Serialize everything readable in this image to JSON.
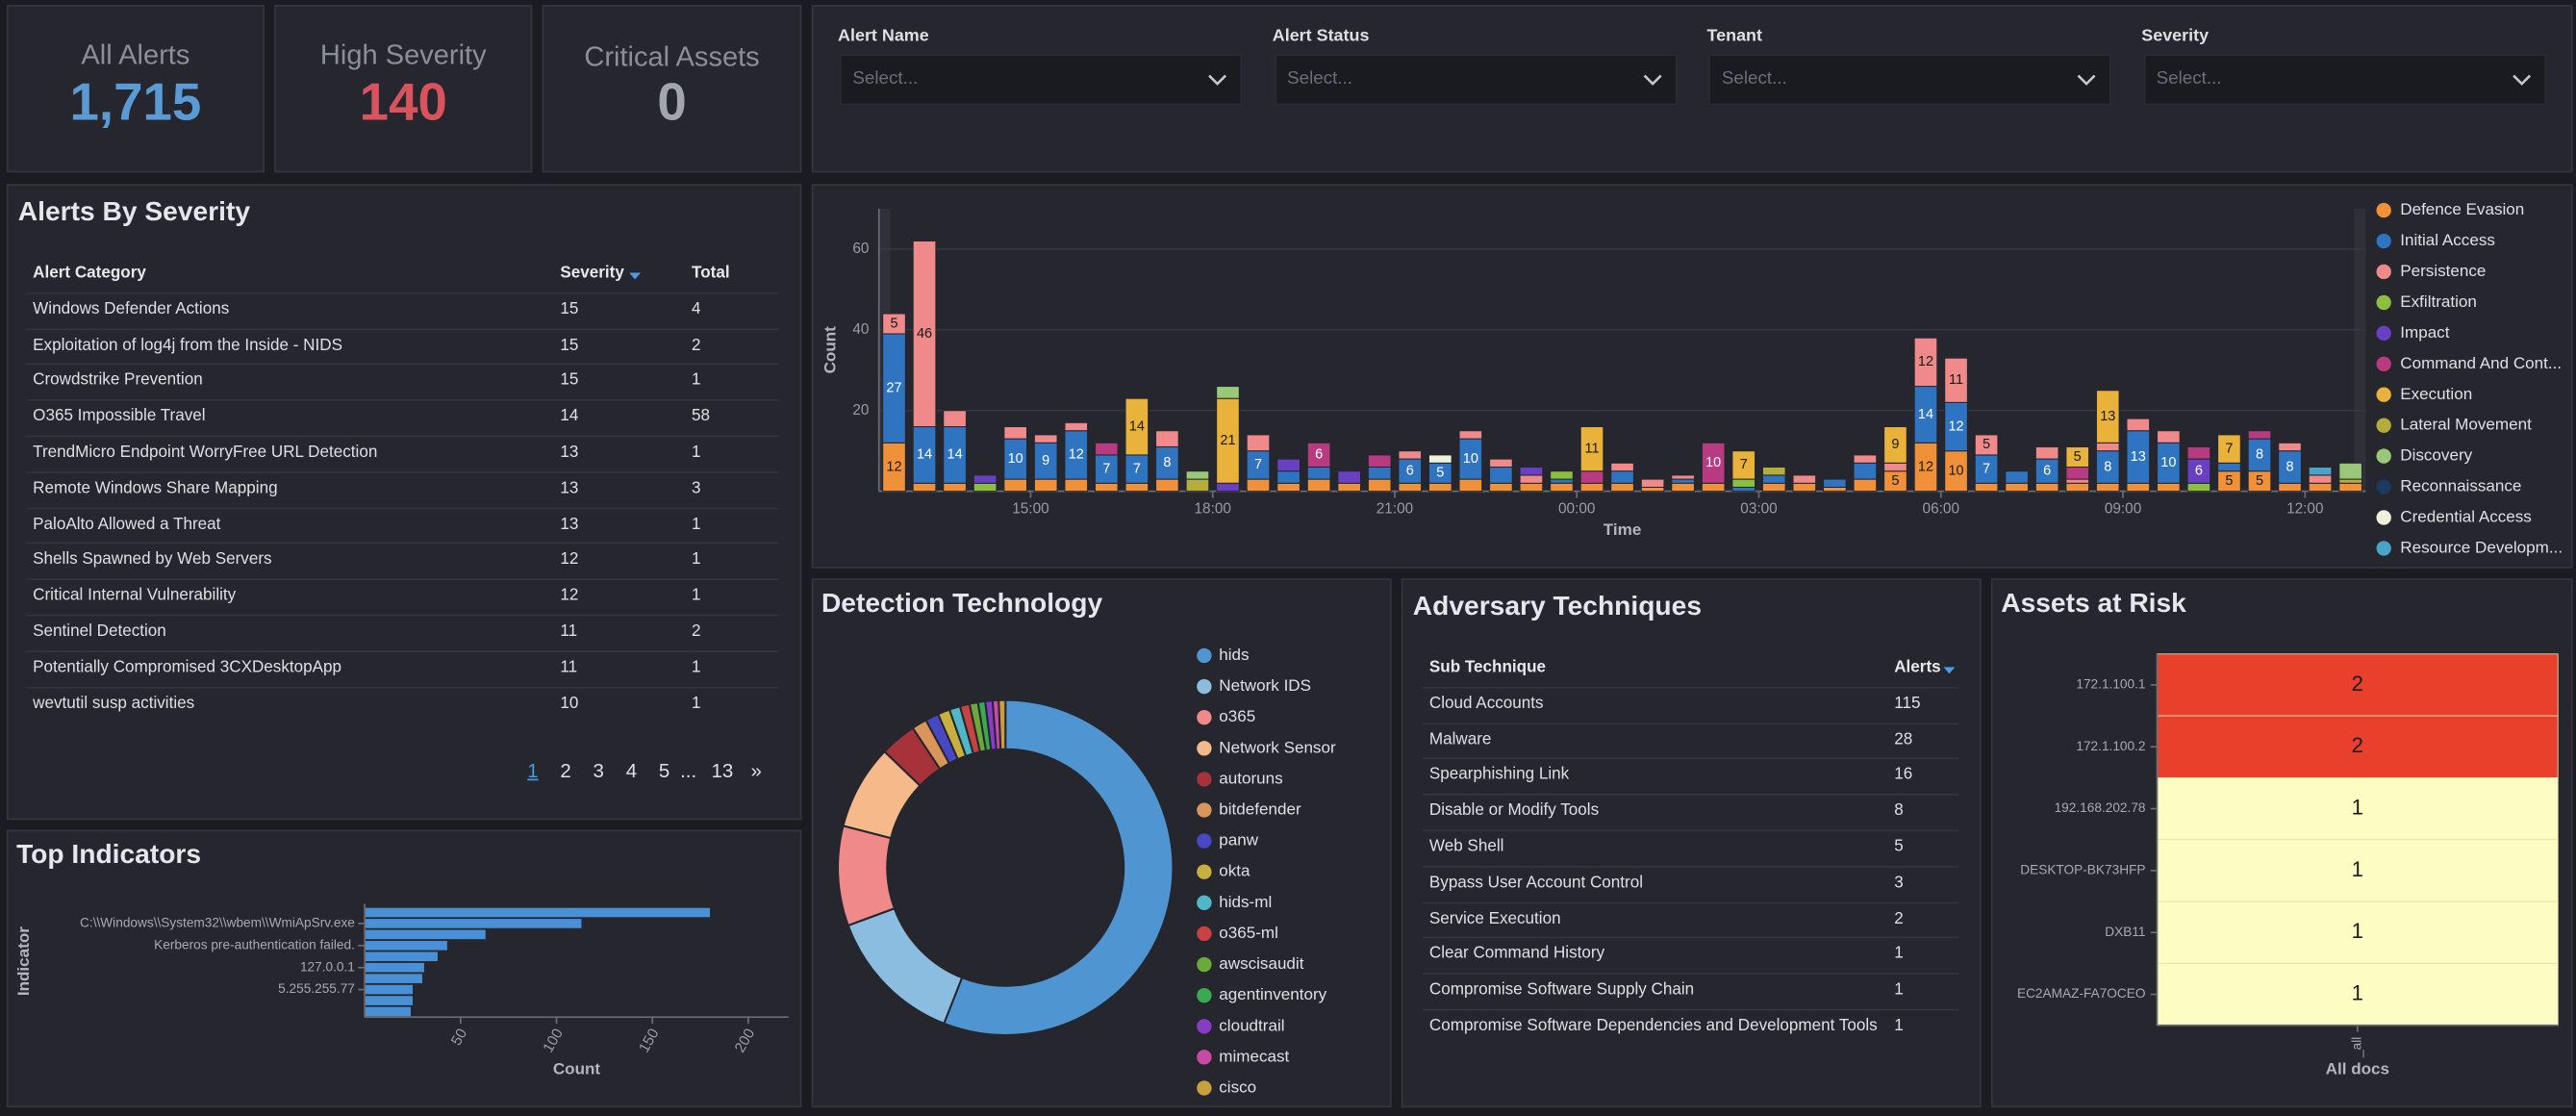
{
  "kpis": [
    {
      "label": "All Alerts",
      "value": "1,715",
      "color": "#5a9bd6"
    },
    {
      "label": "High Severity",
      "value": "140",
      "color": "#d9535f"
    },
    {
      "label": "Critical Assets",
      "value": "0",
      "color": "#a3a5ad"
    }
  ],
  "filters": [
    {
      "label": "Alert Name",
      "placeholder": "Select..."
    },
    {
      "label": "Alert Status",
      "placeholder": "Select..."
    },
    {
      "label": "Tenant",
      "placeholder": "Select..."
    },
    {
      "label": "Severity",
      "placeholder": "Select..."
    }
  ],
  "severity_table": {
    "title": "Alerts By Severity",
    "columns": [
      "Alert Category",
      "Severity",
      "Total"
    ],
    "rows": [
      [
        "Windows Defender Actions",
        "15",
        "4"
      ],
      [
        "Exploitation of log4j from the Inside - NIDS",
        "15",
        "2"
      ],
      [
        "Crowdstrike Prevention",
        "15",
        "1"
      ],
      [
        "O365 Impossible Travel",
        "14",
        "58"
      ],
      [
        "TrendMicro Endpoint WorryFree URL Detection",
        "13",
        "1"
      ],
      [
        "Remote Windows Share Mapping",
        "13",
        "3"
      ],
      [
        "PaloAlto Allowed a Threat",
        "13",
        "1"
      ],
      [
        "Shells Spawned by Web Servers",
        "12",
        "1"
      ],
      [
        "Critical Internal Vulnerability",
        "12",
        "1"
      ],
      [
        "Sentinel Detection",
        "11",
        "2"
      ],
      [
        "Potentially Compromised 3CXDesktopApp",
        "11",
        "1"
      ],
      [
        "wevtutil susp activities",
        "10",
        "1"
      ]
    ],
    "pagination": [
      "1",
      "2",
      "3",
      "4",
      "5",
      "...",
      "13",
      "»"
    ]
  },
  "adversary_table": {
    "title": "Adversary Techniques",
    "columns": [
      "Sub Technique",
      "Alerts"
    ],
    "rows": [
      [
        "Cloud Accounts",
        "115"
      ],
      [
        "Malware",
        "28"
      ],
      [
        "Spearphishing Link",
        "16"
      ],
      [
        "Disable or Modify Tools",
        "8"
      ],
      [
        "Web Shell",
        "5"
      ],
      [
        "Bypass User Account Control",
        "3"
      ],
      [
        "Service Execution",
        "2"
      ],
      [
        "Clear Command History",
        "1"
      ],
      [
        "Compromise Software Supply Chain",
        "1"
      ],
      [
        "Compromise Software Dependencies and Development Tools",
        "1"
      ]
    ]
  },
  "chart_data": [
    {
      "type": "bar",
      "stacked": true,
      "xlabel": "Time",
      "ylabel": "Count",
      "grid": true,
      "legend": "right",
      "x": [
        12.75,
        13.25,
        13.75,
        14.25,
        14.75,
        15.25,
        15.75,
        16.25,
        16.75,
        17.25,
        17.75,
        18.25,
        18.75,
        19.25,
        19.75,
        20.25,
        20.75,
        21.25,
        21.75,
        22.25,
        22.75,
        23.25,
        23.75,
        24.25,
        24.75,
        25.25,
        25.75,
        26.25,
        26.75,
        27.25,
        27.75,
        28.25,
        28.75,
        29.25,
        29.75,
        30.25,
        30.75,
        31.25,
        31.75,
        32.25,
        32.75,
        33.25,
        33.75,
        34.25,
        34.75,
        35.25,
        35.75,
        36.25,
        36.75
      ],
      "xlim": [
        12.5,
        37
      ],
      "xticks": [
        {
          "value": 15,
          "label": "15:00"
        },
        {
          "value": 18,
          "label": "18:00"
        },
        {
          "value": 21,
          "label": "21:00"
        },
        {
          "value": 24,
          "label": "00:00"
        },
        {
          "value": 27,
          "label": "03:00"
        },
        {
          "value": 30,
          "label": "06:00"
        },
        {
          "value": 33,
          "label": "09:00"
        },
        {
          "value": 36,
          "label": "12:00"
        }
      ],
      "ylim": [
        0,
        70
      ],
      "yticks": [
        20,
        40,
        60
      ],
      "series": [
        {
          "name": "Defence Evasion",
          "color": "#f0913a",
          "values": [
            12,
            2,
            2,
            0,
            3,
            3,
            3,
            2,
            2,
            3,
            0,
            0,
            3,
            2,
            3,
            2,
            3,
            2,
            2,
            3,
            2,
            2,
            2,
            2,
            2,
            1,
            2,
            2,
            0,
            2,
            2,
            1,
            3,
            5,
            12,
            10,
            2,
            2,
            2,
            2,
            2,
            2,
            2,
            0,
            5,
            5,
            2,
            2,
            2
          ]
        },
        {
          "name": "Initial Access",
          "color": "#2e74c0",
          "values": [
            27,
            14,
            14,
            0,
            10,
            9,
            12,
            7,
            7,
            8,
            0,
            0,
            7,
            3,
            3,
            0,
            3,
            6,
            5,
            10,
            4,
            0,
            1,
            0,
            3,
            0,
            1,
            0,
            1,
            2,
            0,
            2,
            4,
            0,
            14,
            12,
            7,
            3,
            6,
            0,
            8,
            13,
            10,
            0,
            2,
            8,
            8,
            0,
            0
          ]
        },
        {
          "name": "Persistence",
          "color": "#f08a8a",
          "values": [
            5,
            46,
            4,
            0,
            3,
            2,
            2,
            0,
            0,
            4,
            0,
            0,
            4,
            0,
            0,
            0,
            0,
            2,
            0,
            2,
            2,
            2,
            0,
            0,
            2,
            2,
            1,
            0,
            0,
            0,
            2,
            0,
            2,
            2,
            12,
            11,
            5,
            0,
            3,
            1,
            2,
            3,
            3,
            0,
            0,
            0,
            2,
            2,
            0
          ]
        },
        {
          "name": "Exfiltration",
          "color": "#8cbf3f",
          "values": [
            0,
            0,
            0,
            2,
            0,
            0,
            0,
            0,
            0,
            0,
            0,
            0,
            0,
            0,
            0,
            0,
            0,
            0,
            0,
            0,
            0,
            0,
            2,
            0,
            0,
            0,
            0,
            0,
            2,
            0,
            0,
            0,
            0,
            0,
            0,
            0,
            0,
            0,
            0,
            0,
            0,
            0,
            0,
            2,
            0,
            0,
            0,
            0,
            0
          ]
        },
        {
          "name": "Impact",
          "color": "#6a40c2",
          "values": [
            0,
            0,
            0,
            2,
            0,
            0,
            0,
            0,
            0,
            0,
            0,
            2,
            0,
            3,
            0,
            3,
            0,
            0,
            0,
            0,
            0,
            2,
            0,
            0,
            0,
            0,
            0,
            0,
            0,
            0,
            0,
            0,
            0,
            0,
            0,
            0,
            0,
            0,
            0,
            0,
            0,
            0,
            0,
            6,
            0,
            0,
            0,
            0,
            0
          ]
        },
        {
          "name": "Command And Cont...",
          "color": "#b83a80",
          "values": [
            0,
            0,
            0,
            0,
            0,
            0,
            0,
            3,
            0,
            0,
            0,
            0,
            0,
            0,
            6,
            0,
            3,
            0,
            0,
            0,
            0,
            0,
            0,
            3,
            0,
            0,
            0,
            10,
            0,
            0,
            0,
            0,
            0,
            0,
            0,
            0,
            0,
            0,
            0,
            3,
            0,
            0,
            0,
            3,
            0,
            2,
            0,
            0,
            0
          ]
        },
        {
          "name": "Execution",
          "color": "#e9b23a",
          "values": [
            0,
            0,
            0,
            0,
            0,
            0,
            0,
            0,
            14,
            0,
            0,
            21,
            0,
            0,
            0,
            0,
            0,
            0,
            0,
            0,
            0,
            0,
            0,
            11,
            0,
            0,
            0,
            0,
            7,
            0,
            0,
            0,
            0,
            9,
            0,
            0,
            0,
            0,
            0,
            5,
            13,
            0,
            0,
            0,
            7,
            0,
            0,
            0,
            0
          ]
        },
        {
          "name": "Lateral Movement",
          "color": "#b5ad3a",
          "values": [
            0,
            0,
            0,
            0,
            0,
            0,
            0,
            0,
            0,
            0,
            3,
            0,
            0,
            0,
            0,
            0,
            0,
            0,
            0,
            0,
            0,
            0,
            0,
            0,
            0,
            0,
            0,
            0,
            0,
            2,
            0,
            0,
            0,
            0,
            0,
            0,
            0,
            0,
            0,
            0,
            0,
            0,
            0,
            0,
            0,
            0,
            0,
            0,
            1
          ]
        },
        {
          "name": "Discovery",
          "color": "#98c878",
          "values": [
            0,
            0,
            0,
            0,
            0,
            0,
            0,
            0,
            0,
            0,
            2,
            3,
            0,
            0,
            0,
            0,
            0,
            0,
            0,
            0,
            0,
            0,
            0,
            0,
            0,
            0,
            0,
            0,
            0,
            0,
            0,
            0,
            0,
            0,
            0,
            0,
            0,
            0,
            0,
            0,
            0,
            0,
            0,
            0,
            0,
            0,
            0,
            0,
            4
          ]
        },
        {
          "name": "Reconnaissance",
          "color": "#1c3a60",
          "values": [
            0,
            0,
            0,
            0,
            0,
            0,
            0,
            0,
            0,
            0,
            0,
            0,
            0,
            0,
            0,
            0,
            0,
            0,
            0,
            0,
            0,
            0,
            0,
            0,
            0,
            0,
            0,
            0,
            0,
            0,
            0,
            0,
            0,
            0,
            0,
            0,
            0,
            0,
            0,
            0,
            0,
            0,
            0,
            0,
            0,
            0,
            0,
            0,
            0
          ]
        },
        {
          "name": "Credential Access",
          "color": "#f0f0dc",
          "values": [
            0,
            0,
            0,
            0,
            0,
            0,
            0,
            0,
            0,
            0,
            0,
            0,
            0,
            0,
            0,
            0,
            0,
            0,
            2,
            0,
            0,
            0,
            0,
            0,
            0,
            0,
            0,
            0,
            0,
            0,
            0,
            0,
            0,
            0,
            0,
            0,
            0,
            0,
            0,
            0,
            0,
            0,
            0,
            0,
            0,
            0,
            0,
            0,
            0
          ]
        },
        {
          "name": "Resource Developm...",
          "color": "#4ba3c7",
          "values": [
            0,
            0,
            0,
            0,
            0,
            0,
            0,
            0,
            0,
            0,
            0,
            0,
            0,
            0,
            0,
            0,
            0,
            0,
            0,
            0,
            0,
            0,
            0,
            0,
            0,
            0,
            0,
            0,
            0,
            0,
            0,
            0,
            0,
            0,
            0,
            0,
            0,
            0,
            0,
            0,
            0,
            0,
            0,
            0,
            0,
            0,
            0,
            2,
            0
          ]
        }
      ]
    },
    {
      "type": "bar",
      "orientation": "horizontal",
      "title": "Top Indicators",
      "xlabel": "Count",
      "ylabel": "Indicator",
      "color": "#4a90d6",
      "categories": [
        null,
        "C:\\\\Windows\\\\System32\\\\wbem\\\\WmiApSrv.exe",
        null,
        "Kerberos pre-authentication failed.",
        null,
        "127.0.0.1",
        null,
        "5.255.255.77",
        null,
        null
      ],
      "values": [
        180,
        113,
        63,
        43,
        38,
        31,
        30,
        25,
        25,
        24
      ],
      "xlim": [
        0,
        221
      ],
      "xticks": [
        50,
        100,
        150,
        200
      ]
    },
    {
      "type": "pie",
      "donut": true,
      "title": "Detection Technology",
      "legend": "right",
      "categories": [
        "hids",
        "Network IDS",
        "o365",
        "Network Sensor",
        "autoruns",
        "bitdefender",
        "panw",
        "okta",
        "hids-ml",
        "o365-ml",
        "awscisaudit",
        "agentinventory",
        "cloudtrail",
        "mimecast",
        "cisco"
      ],
      "values": [
        960,
        230,
        165,
        140,
        60,
        25,
        22,
        20,
        18,
        16,
        14,
        12,
        12,
        10,
        11
      ],
      "colors": [
        "#4f95d2",
        "#8bbde0",
        "#f08a8a",
        "#f5b98a",
        "#a8323a",
        "#d9955a",
        "#4848c4",
        "#c8b040",
        "#4fb8c8",
        "#c84242",
        "#6aaa3a",
        "#3aaa50",
        "#8a3ac8",
        "#c84aa8",
        "#c8a040"
      ]
    },
    {
      "type": "heatmap",
      "title": "Assets at Risk",
      "xlabel": "All docs",
      "x_categories": [
        "_all"
      ],
      "y_categories": [
        "172.1.100.1",
        "172.1.100.2",
        "192.168.202.78",
        "DESKTOP-BK73HFP",
        "DXB11",
        "EC2AMAZ-FA7OCEO"
      ],
      "values": [
        2,
        2,
        1,
        1,
        1,
        1
      ],
      "color_range": [
        "#fdfdc3",
        "#e9402b"
      ]
    }
  ]
}
